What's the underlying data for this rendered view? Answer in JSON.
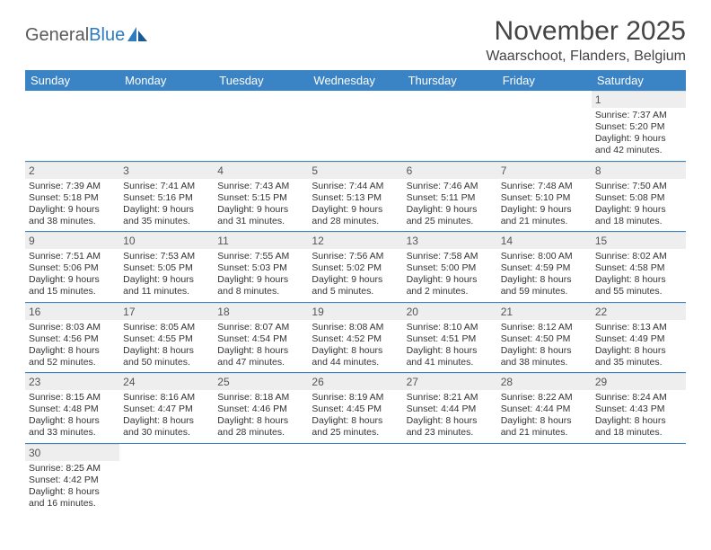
{
  "brand": {
    "part1": "General",
    "part2": "Blue"
  },
  "title": "November 2025",
  "location": "Waarschoot, Flanders, Belgium",
  "colors": {
    "header_bg": "#3a83c4",
    "header_text": "#ffffff",
    "daynum_bg": "#eeeeee",
    "cell_border": "#3a83c4",
    "logo_blue": "#2d7bc0",
    "body_text": "#333333"
  },
  "day_names": [
    "Sunday",
    "Monday",
    "Tuesday",
    "Wednesday",
    "Thursday",
    "Friday",
    "Saturday"
  ],
  "weeks": [
    [
      null,
      null,
      null,
      null,
      null,
      null,
      {
        "n": "1",
        "sr": "7:37 AM",
        "ss": "5:20 PM",
        "dl": "9 hours and 42 minutes."
      }
    ],
    [
      {
        "n": "2",
        "sr": "7:39 AM",
        "ss": "5:18 PM",
        "dl": "9 hours and 38 minutes."
      },
      {
        "n": "3",
        "sr": "7:41 AM",
        "ss": "5:16 PM",
        "dl": "9 hours and 35 minutes."
      },
      {
        "n": "4",
        "sr": "7:43 AM",
        "ss": "5:15 PM",
        "dl": "9 hours and 31 minutes."
      },
      {
        "n": "5",
        "sr": "7:44 AM",
        "ss": "5:13 PM",
        "dl": "9 hours and 28 minutes."
      },
      {
        "n": "6",
        "sr": "7:46 AM",
        "ss": "5:11 PM",
        "dl": "9 hours and 25 minutes."
      },
      {
        "n": "7",
        "sr": "7:48 AM",
        "ss": "5:10 PM",
        "dl": "9 hours and 21 minutes."
      },
      {
        "n": "8",
        "sr": "7:50 AM",
        "ss": "5:08 PM",
        "dl": "9 hours and 18 minutes."
      }
    ],
    [
      {
        "n": "9",
        "sr": "7:51 AM",
        "ss": "5:06 PM",
        "dl": "9 hours and 15 minutes."
      },
      {
        "n": "10",
        "sr": "7:53 AM",
        "ss": "5:05 PM",
        "dl": "9 hours and 11 minutes."
      },
      {
        "n": "11",
        "sr": "7:55 AM",
        "ss": "5:03 PM",
        "dl": "9 hours and 8 minutes."
      },
      {
        "n": "12",
        "sr": "7:56 AM",
        "ss": "5:02 PM",
        "dl": "9 hours and 5 minutes."
      },
      {
        "n": "13",
        "sr": "7:58 AM",
        "ss": "5:00 PM",
        "dl": "9 hours and 2 minutes."
      },
      {
        "n": "14",
        "sr": "8:00 AM",
        "ss": "4:59 PM",
        "dl": "8 hours and 59 minutes."
      },
      {
        "n": "15",
        "sr": "8:02 AM",
        "ss": "4:58 PM",
        "dl": "8 hours and 55 minutes."
      }
    ],
    [
      {
        "n": "16",
        "sr": "8:03 AM",
        "ss": "4:56 PM",
        "dl": "8 hours and 52 minutes."
      },
      {
        "n": "17",
        "sr": "8:05 AM",
        "ss": "4:55 PM",
        "dl": "8 hours and 50 minutes."
      },
      {
        "n": "18",
        "sr": "8:07 AM",
        "ss": "4:54 PM",
        "dl": "8 hours and 47 minutes."
      },
      {
        "n": "19",
        "sr": "8:08 AM",
        "ss": "4:52 PM",
        "dl": "8 hours and 44 minutes."
      },
      {
        "n": "20",
        "sr": "8:10 AM",
        "ss": "4:51 PM",
        "dl": "8 hours and 41 minutes."
      },
      {
        "n": "21",
        "sr": "8:12 AM",
        "ss": "4:50 PM",
        "dl": "8 hours and 38 minutes."
      },
      {
        "n": "22",
        "sr": "8:13 AM",
        "ss": "4:49 PM",
        "dl": "8 hours and 35 minutes."
      }
    ],
    [
      {
        "n": "23",
        "sr": "8:15 AM",
        "ss": "4:48 PM",
        "dl": "8 hours and 33 minutes."
      },
      {
        "n": "24",
        "sr": "8:16 AM",
        "ss": "4:47 PM",
        "dl": "8 hours and 30 minutes."
      },
      {
        "n": "25",
        "sr": "8:18 AM",
        "ss": "4:46 PM",
        "dl": "8 hours and 28 minutes."
      },
      {
        "n": "26",
        "sr": "8:19 AM",
        "ss": "4:45 PM",
        "dl": "8 hours and 25 minutes."
      },
      {
        "n": "27",
        "sr": "8:21 AM",
        "ss": "4:44 PM",
        "dl": "8 hours and 23 minutes."
      },
      {
        "n": "28",
        "sr": "8:22 AM",
        "ss": "4:44 PM",
        "dl": "8 hours and 21 minutes."
      },
      {
        "n": "29",
        "sr": "8:24 AM",
        "ss": "4:43 PM",
        "dl": "8 hours and 18 minutes."
      }
    ],
    [
      {
        "n": "30",
        "sr": "8:25 AM",
        "ss": "4:42 PM",
        "dl": "8 hours and 16 minutes."
      },
      null,
      null,
      null,
      null,
      null,
      null
    ]
  ],
  "labels": {
    "sunrise": "Sunrise:",
    "sunset": "Sunset:",
    "daylight": "Daylight:"
  }
}
